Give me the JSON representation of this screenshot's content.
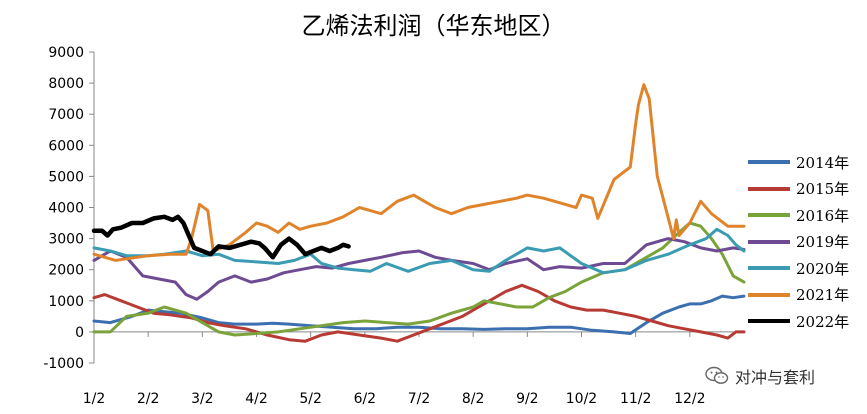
{
  "chart_data": {
    "type": "line",
    "title": "乙烯法利润（华东地区）",
    "ylim": [
      -1000,
      9000
    ],
    "yticks": [
      "9000",
      "8000",
      "7000",
      "6000",
      "5000",
      "4000",
      "3000",
      "2000",
      "1000",
      "0",
      "-1000"
    ],
    "xlim": [
      0,
      12
    ],
    "xticks": [
      "1/2",
      "2/2",
      "3/2",
      "4/2",
      "5/2",
      "6/2",
      "7/2",
      "8/2",
      "9/2",
      "10/2",
      "11/2",
      "12/2"
    ],
    "grid": false,
    "legend_position": "right",
    "series": [
      {
        "name": "2014年",
        "color": "#3b6fb0",
        "points": [
          [
            0,
            350
          ],
          [
            0.3,
            300
          ],
          [
            0.7,
            500
          ],
          [
            1,
            700
          ],
          [
            1.3,
            650
          ],
          [
            1.6,
            600
          ],
          [
            2,
            450
          ],
          [
            2.3,
            300
          ],
          [
            2.6,
            250
          ],
          [
            3,
            250
          ],
          [
            3.3,
            280
          ],
          [
            3.6,
            250
          ],
          [
            4,
            200
          ],
          [
            4.4,
            150
          ],
          [
            4.8,
            100
          ],
          [
            5.2,
            100
          ],
          [
            5.6,
            150
          ],
          [
            6,
            150
          ],
          [
            6.4,
            100
          ],
          [
            6.8,
            100
          ],
          [
            7.2,
            80
          ],
          [
            7.6,
            100
          ],
          [
            8,
            100
          ],
          [
            8.4,
            150
          ],
          [
            8.8,
            150
          ],
          [
            9.2,
            50
          ],
          [
            9.6,
            0
          ],
          [
            9.9,
            -50
          ],
          [
            10.2,
            300
          ],
          [
            10.5,
            600
          ],
          [
            10.8,
            800
          ],
          [
            11,
            900
          ],
          [
            11.2,
            900
          ],
          [
            11.4,
            1000
          ],
          [
            11.6,
            1150
          ],
          [
            11.8,
            1100
          ],
          [
            12,
            1150
          ]
        ]
      },
      {
        "name": "2015年",
        "color": "#b83a34",
        "points": [
          [
            0,
            1100
          ],
          [
            0.2,
            1200
          ],
          [
            0.5,
            1000
          ],
          [
            0.8,
            800
          ],
          [
            1.1,
            600
          ],
          [
            1.4,
            550
          ],
          [
            1.8,
            450
          ],
          [
            2.1,
            300
          ],
          [
            2.4,
            200
          ],
          [
            2.8,
            100
          ],
          [
            3.2,
            -100
          ],
          [
            3.6,
            -250
          ],
          [
            3.9,
            -300
          ],
          [
            4.2,
            -100
          ],
          [
            4.5,
            0
          ],
          [
            4.9,
            -100
          ],
          [
            5.3,
            -200
          ],
          [
            5.6,
            -300
          ],
          [
            5.9,
            -100
          ],
          [
            6.2,
            100
          ],
          [
            6.5,
            300
          ],
          [
            6.8,
            500
          ],
          [
            7,
            700
          ],
          [
            7.3,
            1000
          ],
          [
            7.6,
            1300
          ],
          [
            7.9,
            1500
          ],
          [
            8.2,
            1300
          ],
          [
            8.5,
            1000
          ],
          [
            8.8,
            800
          ],
          [
            9.1,
            700
          ],
          [
            9.4,
            700
          ],
          [
            9.7,
            600
          ],
          [
            10,
            500
          ],
          [
            10.3,
            350
          ],
          [
            10.6,
            200
          ],
          [
            10.9,
            100
          ],
          [
            11.2,
            0
          ],
          [
            11.5,
            -100
          ],
          [
            11.7,
            -200
          ],
          [
            11.85,
            0
          ],
          [
            12,
            0
          ]
        ]
      },
      {
        "name": "2016年",
        "color": "#7ba33b",
        "points": [
          [
            0,
            0
          ],
          [
            0.3,
            0
          ],
          [
            0.6,
            500
          ],
          [
            1,
            600
          ],
          [
            1.3,
            800
          ],
          [
            1.7,
            600
          ],
          [
            2,
            300
          ],
          [
            2.3,
            0
          ],
          [
            2.6,
            -100
          ],
          [
            3,
            -50
          ],
          [
            3.4,
            0
          ],
          [
            3.8,
            100
          ],
          [
            4.2,
            200
          ],
          [
            4.6,
            300
          ],
          [
            5,
            350
          ],
          [
            5.4,
            300
          ],
          [
            5.8,
            250
          ],
          [
            6.2,
            350
          ],
          [
            6.6,
            600
          ],
          [
            7,
            800
          ],
          [
            7.2,
            1000
          ],
          [
            7.5,
            900
          ],
          [
            7.8,
            800
          ],
          [
            8.1,
            800
          ],
          [
            8.4,
            1100
          ],
          [
            8.7,
            1300
          ],
          [
            9,
            1600
          ],
          [
            9.4,
            1900
          ],
          [
            9.8,
            2000
          ],
          [
            10.2,
            2400
          ],
          [
            10.5,
            2700
          ],
          [
            10.8,
            3200
          ],
          [
            11,
            3500
          ],
          [
            11.2,
            3400
          ],
          [
            11.4,
            3000
          ],
          [
            11.6,
            2500
          ],
          [
            11.8,
            1800
          ],
          [
            12,
            1600
          ]
        ]
      },
      {
        "name": "2019年",
        "color": "#6d4a92",
        "points": [
          [
            0,
            2300
          ],
          [
            0.3,
            2600
          ],
          [
            0.6,
            2400
          ],
          [
            0.9,
            1800
          ],
          [
            1.2,
            1700
          ],
          [
            1.5,
            1600
          ],
          [
            1.7,
            1200
          ],
          [
            1.9,
            1050
          ],
          [
            2.1,
            1300
          ],
          [
            2.3,
            1600
          ],
          [
            2.6,
            1800
          ],
          [
            2.9,
            1600
          ],
          [
            3.2,
            1700
          ],
          [
            3.5,
            1900
          ],
          [
            3.8,
            2000
          ],
          [
            4.1,
            2100
          ],
          [
            4.4,
            2050
          ],
          [
            4.7,
            2200
          ],
          [
            5,
            2300
          ],
          [
            5.3,
            2400
          ],
          [
            5.7,
            2550
          ],
          [
            6,
            2600
          ],
          [
            6.3,
            2400
          ],
          [
            6.6,
            2300
          ],
          [
            7,
            2200
          ],
          [
            7.3,
            2000
          ],
          [
            7.6,
            2200
          ],
          [
            8,
            2350
          ],
          [
            8.3,
            2000
          ],
          [
            8.6,
            2100
          ],
          [
            9,
            2050
          ],
          [
            9.4,
            2200
          ],
          [
            9.8,
            2200
          ],
          [
            10.2,
            2800
          ],
          [
            10.6,
            3000
          ],
          [
            10.9,
            2900
          ],
          [
            11.2,
            2700
          ],
          [
            11.5,
            2600
          ],
          [
            11.8,
            2700
          ],
          [
            12,
            2650
          ]
        ]
      },
      {
        "name": "2020年",
        "color": "#3a9bb3",
        "points": [
          [
            0,
            2700
          ],
          [
            0.3,
            2600
          ],
          [
            0.6,
            2450
          ],
          [
            1,
            2450
          ],
          [
            1.3,
            2500
          ],
          [
            1.7,
            2600
          ],
          [
            2,
            2450
          ],
          [
            2.3,
            2500
          ],
          [
            2.6,
            2300
          ],
          [
            3,
            2250
          ],
          [
            3.4,
            2200
          ],
          [
            3.7,
            2300
          ],
          [
            4,
            2500
          ],
          [
            4.2,
            2200
          ],
          [
            4.5,
            2050
          ],
          [
            4.8,
            2000
          ],
          [
            5.1,
            1950
          ],
          [
            5.4,
            2200
          ],
          [
            5.8,
            1950
          ],
          [
            6.2,
            2200
          ],
          [
            6.6,
            2300
          ],
          [
            7,
            2000
          ],
          [
            7.3,
            1950
          ],
          [
            7.6,
            2300
          ],
          [
            8,
            2700
          ],
          [
            8.3,
            2600
          ],
          [
            8.6,
            2700
          ],
          [
            9,
            2200
          ],
          [
            9.4,
            1900
          ],
          [
            9.8,
            2000
          ],
          [
            10.2,
            2300
          ],
          [
            10.6,
            2500
          ],
          [
            11,
            2800
          ],
          [
            11.3,
            3000
          ],
          [
            11.5,
            3300
          ],
          [
            11.7,
            3100
          ],
          [
            11.85,
            2800
          ],
          [
            12,
            2600
          ]
        ]
      },
      {
        "name": "2021年",
        "color": "#e0842b",
        "points": [
          [
            0,
            2500
          ],
          [
            0.2,
            2400
          ],
          [
            0.4,
            2300
          ],
          [
            0.6,
            2350
          ],
          [
            1,
            2450
          ],
          [
            1.4,
            2500
          ],
          [
            1.7,
            2500
          ],
          [
            1.8,
            3000
          ],
          [
            1.95,
            4100
          ],
          [
            2.1,
            3900
          ],
          [
            2.2,
            2600
          ],
          [
            2.5,
            2800
          ],
          [
            2.8,
            3200
          ],
          [
            3,
            3500
          ],
          [
            3.2,
            3400
          ],
          [
            3.4,
            3200
          ],
          [
            3.6,
            3500
          ],
          [
            3.8,
            3300
          ],
          [
            4,
            3400
          ],
          [
            4.3,
            3500
          ],
          [
            4.6,
            3700
          ],
          [
            4.9,
            4000
          ],
          [
            5.1,
            3900
          ],
          [
            5.3,
            3800
          ],
          [
            5.6,
            4200
          ],
          [
            5.9,
            4400
          ],
          [
            6.1,
            4200
          ],
          [
            6.3,
            4000
          ],
          [
            6.6,
            3800
          ],
          [
            6.9,
            4000
          ],
          [
            7.2,
            4100
          ],
          [
            7.5,
            4200
          ],
          [
            7.8,
            4300
          ],
          [
            8,
            4400
          ],
          [
            8.3,
            4300
          ],
          [
            8.6,
            4150
          ],
          [
            8.9,
            4000
          ],
          [
            9,
            4400
          ],
          [
            9.2,
            4300
          ],
          [
            9.3,
            3650
          ],
          [
            9.6,
            4900
          ],
          [
            9.9,
            5300
          ],
          [
            10,
            6700
          ],
          [
            10.05,
            7300
          ],
          [
            10.15,
            7950
          ],
          [
            10.25,
            7500
          ],
          [
            10.4,
            5000
          ],
          [
            10.55,
            4000
          ],
          [
            10.7,
            3000
          ],
          [
            10.75,
            3600
          ],
          [
            10.8,
            3100
          ],
          [
            11,
            3500
          ],
          [
            11.2,
            4200
          ],
          [
            11.4,
            3800
          ],
          [
            11.7,
            3400
          ],
          [
            12,
            3400
          ]
        ]
      },
      {
        "name": "2022年",
        "color": "#000000",
        "width": 4.5,
        "points": [
          [
            0,
            3250
          ],
          [
            0.15,
            3250
          ],
          [
            0.25,
            3100
          ],
          [
            0.35,
            3300
          ],
          [
            0.5,
            3350
          ],
          [
            0.7,
            3500
          ],
          [
            0.9,
            3500
          ],
          [
            1.1,
            3650
          ],
          [
            1.3,
            3700
          ],
          [
            1.45,
            3600
          ],
          [
            1.55,
            3700
          ],
          [
            1.65,
            3500
          ],
          [
            1.75,
            3100
          ],
          [
            1.85,
            2700
          ],
          [
            2,
            2600
          ],
          [
            2.15,
            2500
          ],
          [
            2.3,
            2750
          ],
          [
            2.5,
            2700
          ],
          [
            2.7,
            2800
          ],
          [
            2.9,
            2900
          ],
          [
            3.05,
            2850
          ],
          [
            3.15,
            2700
          ],
          [
            3.3,
            2400
          ],
          [
            3.45,
            2800
          ],
          [
            3.6,
            3000
          ],
          [
            3.75,
            2800
          ],
          [
            3.9,
            2500
          ],
          [
            4.05,
            2600
          ],
          [
            4.2,
            2700
          ],
          [
            4.35,
            2600
          ],
          [
            4.5,
            2700
          ],
          [
            4.6,
            2800
          ],
          [
            4.7,
            2750
          ]
        ]
      }
    ]
  },
  "watermark": {
    "icon": "wechat-icon",
    "text": "对冲与套利"
  }
}
